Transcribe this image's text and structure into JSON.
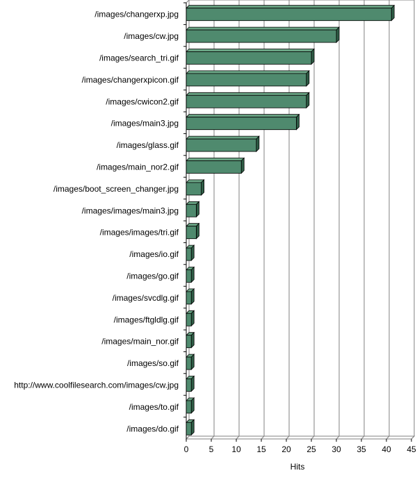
{
  "chart_data": {
    "type": "bar",
    "orientation": "horizontal",
    "categories": [
      "/images/changerxp.jpg",
      "/images/cw.jpg",
      "/images/search_tri.gif",
      "/images/changerxpicon.gif",
      "/images/cwicon2.gif",
      "/images/main3.jpg",
      "/images/glass.gif",
      "/images/main_nor2.gif",
      "/images/boot_screen_changer.jpg",
      "/images/images/main3.jpg",
      "/images/images/tri.gif",
      "/images/io.gif",
      "/images/go.gif",
      "/images/svcdlg.gif",
      "/images/ftgldlg.gif",
      "/images/main_nor.gif",
      "/images/so.gif",
      "http://www.coolfilesearch.com/images/cw.jpg",
      "/images/to.gif",
      "/images/do.gif"
    ],
    "values": [
      41,
      30,
      25,
      24,
      24,
      22,
      14,
      11,
      3,
      2,
      2,
      1,
      1,
      1,
      1,
      1,
      1,
      1,
      1,
      1
    ],
    "xlabel": "Hits",
    "xlim": [
      0,
      45
    ],
    "xticks": [
      "0",
      "5",
      "10",
      "15",
      "20",
      "25",
      "30",
      "35",
      "40",
      "45"
    ],
    "grid": true,
    "colors": {
      "bar_front": "#4f8a6e",
      "bar_top": "#6aa585",
      "bar_side": "#2f5e47",
      "grid": "#808080",
      "wall": "#ffffff"
    }
  }
}
